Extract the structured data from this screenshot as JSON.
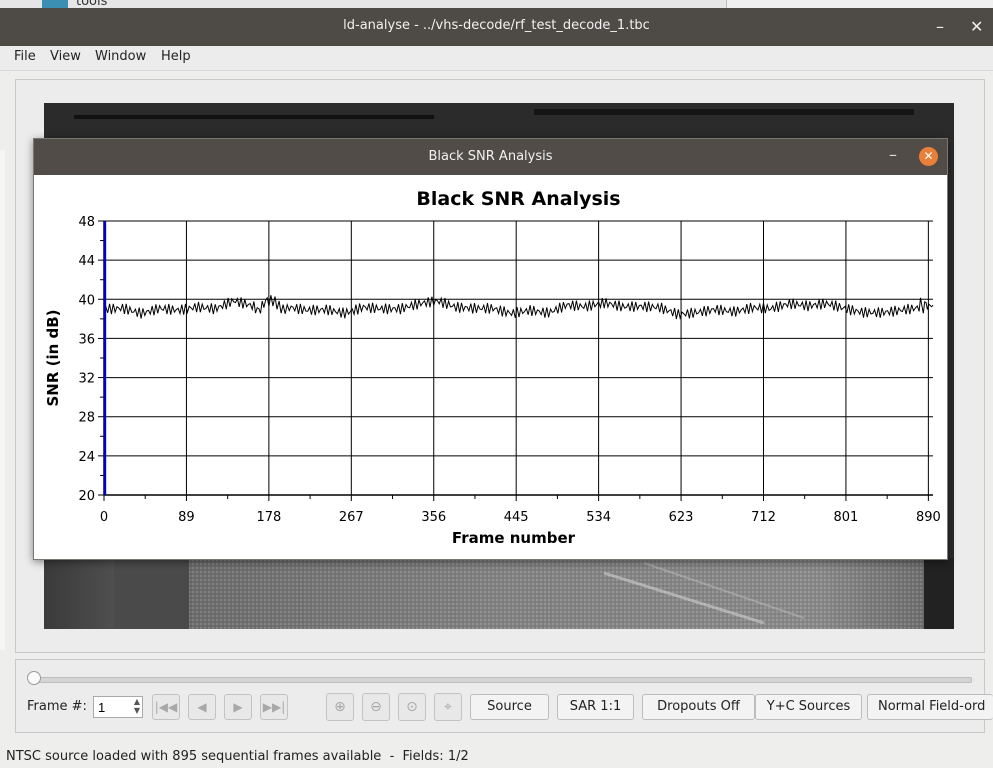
{
  "background": {
    "partial_label": "tools"
  },
  "main_window": {
    "title": "ld-analyse - ../vhs-decode/rf_test_decode_1.tbc",
    "minimize_icon": "minimize-icon",
    "close_icon": "close-icon",
    "min_glyph": "–",
    "close_glyph": "✕",
    "menu": [
      "File",
      "View",
      "Window",
      "Help"
    ]
  },
  "controls": {
    "frame_label": "Frame #:",
    "frame_value": "1",
    "nav_buttons": [
      "first-frame-icon",
      "previous-frame-icon",
      "next-frame-icon",
      "last-frame-icon"
    ],
    "zoom_buttons": [
      "zoom-in-icon",
      "zoom-out-icon",
      "zoom-original-icon",
      "mouse-mode-icon"
    ],
    "source_button": "Source",
    "sar_button": "SAR 1:1",
    "dropouts_button": "Dropouts Off",
    "yc_button": "Y+C Sources",
    "field_order_button": "Normal Field-ord"
  },
  "status_bar": {
    "text": "NTSC source loaded with 895 sequential frames available  -  Fields: 1/2"
  },
  "dialog": {
    "title": "Black SNR Analysis",
    "min_glyph": "–",
    "close_glyph": "✕"
  },
  "colors": {
    "titlebar": "#4e4a46",
    "close_button": "#e8803a",
    "marker_line": "#0000cc",
    "series_line": "#000000"
  },
  "chart_data": {
    "type": "line",
    "title": "Black SNR Analysis",
    "xlabel": "Frame number",
    "ylabel": "SNR (in dB)",
    "xlim": [
      0,
      895
    ],
    "ylim": [
      20,
      48
    ],
    "x_ticks": [
      0,
      89,
      178,
      267,
      356,
      445,
      534,
      623,
      712,
      801,
      890
    ],
    "y_ticks": [
      20,
      24,
      28,
      32,
      36,
      40,
      44,
      48
    ],
    "grid": true,
    "marker_frame": 1,
    "series": [
      {
        "x": [
          0,
          20,
          40,
          60,
          80,
          100,
          120,
          140,
          160,
          178,
          200,
          220,
          240,
          260,
          280,
          300,
          320,
          340,
          360,
          380,
          400,
          420,
          440,
          460,
          480,
          500,
          520,
          540,
          560,
          580,
          600,
          620,
          640,
          660,
          680,
          700,
          720,
          740,
          760,
          780,
          800,
          820,
          840,
          860,
          880,
          895
        ],
        "values": [
          39.0,
          39.3,
          38.9,
          39.4,
          39.1,
          39.2,
          38.8,
          39.5,
          39.0,
          39.6,
          39.2,
          39.1,
          39.3,
          38.9,
          39.4,
          39.0,
          38.8,
          39.2,
          39.5,
          39.0,
          39.1,
          39.3,
          38.9,
          39.2,
          38.8,
          39.4,
          39.0,
          39.3,
          38.9,
          39.1,
          39.2,
          38.7,
          39.0,
          39.3,
          38.9,
          39.1,
          38.8,
          39.2,
          39.0,
          39.4,
          39.1,
          38.9,
          39.0,
          39.2,
          39.3,
          39.4
        ]
      }
    ]
  }
}
